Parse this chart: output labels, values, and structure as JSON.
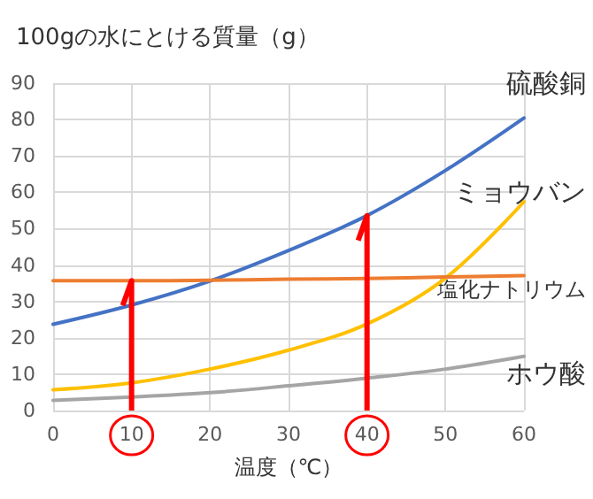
{
  "chart_data": {
    "type": "line",
    "ylabel": "100gの水にとける質量（g）",
    "xlabel": "温度（℃）",
    "x": [
      0,
      10,
      20,
      30,
      40,
      50,
      60
    ],
    "series": [
      {
        "name": "硫酸銅",
        "color": "#4472c4",
        "values": [
          23.7,
          29,
          35.6,
          44,
          53.6,
          66,
          80.4
        ]
      },
      {
        "name": "ミョウバン",
        "color": "#ffc000",
        "values": [
          5.7,
          7.6,
          11.4,
          16.6,
          23.8,
          36.4,
          57.4
        ]
      },
      {
        "name": "塩化ナトリウム",
        "color": "#ed7d31",
        "values": [
          35.7,
          35.7,
          35.8,
          36.1,
          36.3,
          36.7,
          37.1
        ]
      },
      {
        "name": "ホウ酸",
        "color": "#a5a5a5",
        "values": [
          2.8,
          3.7,
          4.9,
          6.8,
          8.9,
          11.4,
          14.9
        ]
      }
    ],
    "xlim": [
      0,
      60
    ],
    "xticks": [
      0,
      10,
      20,
      30,
      40,
      50,
      60
    ],
    "ylim": [
      0,
      90
    ],
    "yticks": [
      0,
      10,
      20,
      30,
      40,
      50,
      60,
      70,
      80,
      90
    ],
    "ref_lines": [
      {
        "axis": "x",
        "value": 10,
        "color": "#ff0000"
      },
      {
        "axis": "x",
        "value": 40,
        "color": "#ff0000"
      }
    ],
    "grid": true,
    "marker": "none",
    "line_style": "solid",
    "legend": false
  }
}
